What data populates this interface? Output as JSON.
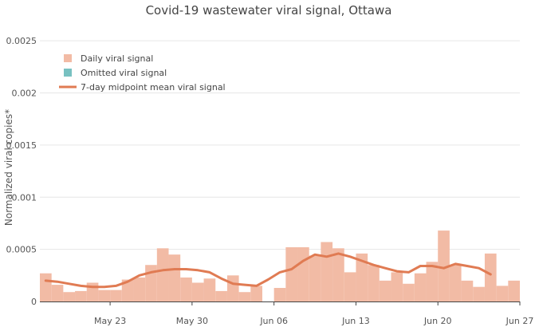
{
  "chart_data": {
    "type": "bar",
    "title": "Covid-19 wastewater viral signal, Ottawa",
    "xlabel": "",
    "ylabel": "Normalized viral copies*",
    "ylim": [
      0,
      0.0027
    ],
    "y_ticks": [
      "0",
      "0.0005",
      "0.001",
      "0.0015",
      "0.002",
      "0.0025"
    ],
    "x_ticks": [
      "May 23",
      "May 30",
      "Jun 06",
      "Jun 13",
      "Jun 20",
      "Jun 27"
    ],
    "x_range": [
      "2021-05-17",
      "2021-06-27"
    ],
    "grid": true,
    "legend_position": "top-left",
    "legend": [
      {
        "label": "Daily viral signal",
        "kind": "bar",
        "color": "#f2bba5"
      },
      {
        "label": "Omitted viral signal",
        "kind": "bar",
        "color": "#78c1c1"
      },
      {
        "label": "7-day midpoint mean viral signal",
        "kind": "line",
        "color": "#e07b53"
      }
    ],
    "series": [
      {
        "name": "Daily viral signal",
        "type": "bar",
        "color": "#f2bba5",
        "x": [
          "2021-05-17",
          "2021-05-18",
          "2021-05-19",
          "2021-05-20",
          "2021-05-21",
          "2021-05-22",
          "2021-05-23",
          "2021-05-24",
          "2021-05-25",
          "2021-05-26",
          "2021-05-27",
          "2021-05-28",
          "2021-05-29",
          "2021-05-30",
          "2021-05-31",
          "2021-06-01",
          "2021-06-02",
          "2021-06-03",
          "2021-06-04",
          "2021-06-05",
          "2021-06-06",
          "2021-06-07",
          "2021-06-08",
          "2021-06-09",
          "2021-06-10",
          "2021-06-11",
          "2021-06-12",
          "2021-06-13",
          "2021-06-14",
          "2021-06-15",
          "2021-06-16",
          "2021-06-17",
          "2021-06-18",
          "2021-06-19",
          "2021-06-20",
          "2021-06-21",
          "2021-06-22",
          "2021-06-23",
          "2021-06-24",
          "2021-06-25",
          "2021-06-26"
        ],
        "values": [
          0.00027,
          0.00016,
          9e-05,
          0.0001,
          0.00018,
          0.00011,
          0.00011,
          0.00021,
          0.00023,
          0.00035,
          0.00051,
          0.00045,
          0.00023,
          0.00018,
          0.00022,
          0.0001,
          0.00025,
          9e-05,
          0.00015,
          0,
          0.00013,
          0.00052,
          0.00052,
          0.00044,
          0.00057,
          0.00051,
          0.00028,
          0.00046,
          0.00035,
          0.0002,
          0.00028,
          0.00017,
          0.00027,
          0.00038,
          0.00068,
          0.00035,
          0.0002,
          0.00014,
          0.00046,
          0.00015,
          0.0002
        ]
      },
      {
        "name": "7-day midpoint mean viral signal",
        "type": "line",
        "color": "#e07b53",
        "x": [
          "2021-05-17",
          "2021-05-18",
          "2021-05-19",
          "2021-05-20",
          "2021-05-21",
          "2021-05-22",
          "2021-05-23",
          "2021-05-24",
          "2021-05-25",
          "2021-05-26",
          "2021-05-27",
          "2021-05-28",
          "2021-05-29",
          "2021-05-30",
          "2021-05-31",
          "2021-06-01",
          "2021-06-02",
          "2021-06-03",
          "2021-06-04",
          "2021-06-05",
          "2021-06-06",
          "2021-06-07",
          "2021-06-08",
          "2021-06-09",
          "2021-06-10",
          "2021-06-11",
          "2021-06-12",
          "2021-06-13",
          "2021-06-14",
          "2021-06-15",
          "2021-06-16",
          "2021-06-17",
          "2021-06-18",
          "2021-06-19",
          "2021-06-20",
          "2021-06-21",
          "2021-06-22",
          "2021-06-23",
          "2021-06-24"
        ],
        "values": [
          0.0002,
          0.00019,
          0.00017,
          0.00015,
          0.00014,
          0.00014,
          0.00015,
          0.00019,
          0.00025,
          0.00028,
          0.0003,
          0.00031,
          0.00031,
          0.0003,
          0.00028,
          0.00022,
          0.00017,
          0.00016,
          0.00015,
          0.00021,
          0.00028,
          0.00031,
          0.00039,
          0.00045,
          0.00043,
          0.00046,
          0.00043,
          0.00039,
          0.00035,
          0.00032,
          0.00029,
          0.00028,
          0.00034,
          0.00034,
          0.00032,
          0.00036,
          0.00034,
          0.00032,
          0.00026
        ]
      }
    ]
  }
}
